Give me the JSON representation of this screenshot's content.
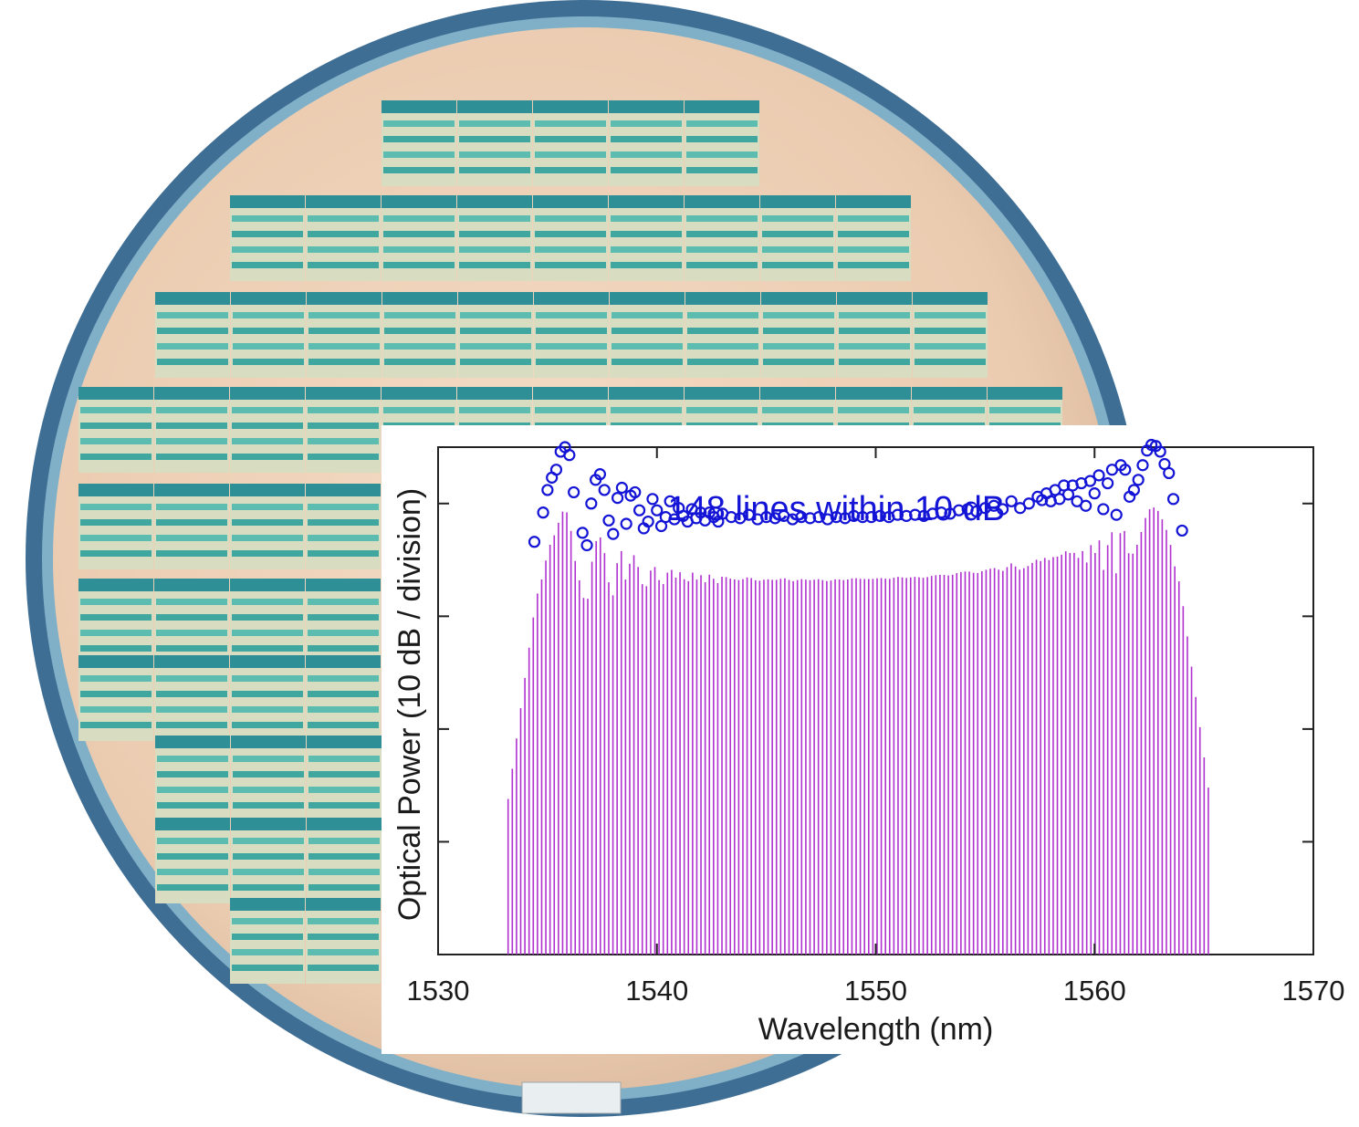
{
  "chart_data": {
    "type": "line",
    "title": "",
    "annotation": "148 lines within 10 dB",
    "xlabel": "Wavelength (nm)",
    "ylabel": "Optical Power (10 dB / division)",
    "xlim": [
      1530,
      1570
    ],
    "x_ticks": [
      "1530",
      "1540",
      "1550",
      "1560",
      "1570"
    ],
    "x_tick_values": [
      1530,
      1540,
      1550,
      1560,
      1570
    ],
    "ylim": [
      -40,
      5
    ],
    "y_tick_values": [
      -30,
      -20,
      -10,
      0
    ],
    "y_ticks_labeled": false,
    "grid": false,
    "series": [
      {
        "type": "comb-lines",
        "color": "#b030d0",
        "count": 168,
        "start_nm": 1533.2,
        "end_nm": 1565.2
      },
      {
        "type": "scatter",
        "marker": "open-circle",
        "color": "#1414d6",
        "count": 148,
        "start_nm": 1534.4,
        "end_nm": 1564.0,
        "peak_values_dB": [
          [
            1534.4,
            -3.4
          ],
          [
            1534.8,
            -0.8
          ],
          [
            1535.0,
            1.2
          ],
          [
            1535.2,
            2.3
          ],
          [
            1535.4,
            3.0
          ],
          [
            1535.6,
            4.6
          ],
          [
            1535.8,
            5.0
          ],
          [
            1536.0,
            4.3
          ],
          [
            1536.2,
            1.0
          ],
          [
            1536.6,
            -2.6
          ],
          [
            1536.8,
            -3.7
          ],
          [
            1537.0,
            0.0
          ],
          [
            1537.2,
            2.1
          ],
          [
            1537.4,
            2.6
          ],
          [
            1537.6,
            1.2
          ],
          [
            1537.8,
            -1.5
          ],
          [
            1538.0,
            -2.7
          ],
          [
            1538.2,
            0.5
          ],
          [
            1538.4,
            1.4
          ],
          [
            1538.6,
            -1.8
          ],
          [
            1538.8,
            0.7
          ],
          [
            1539.0,
            1.0
          ],
          [
            1539.2,
            -0.6
          ],
          [
            1539.4,
            -2.2
          ],
          [
            1539.6,
            -1.6
          ],
          [
            1539.8,
            0.4
          ],
          [
            1540.0,
            -0.6
          ],
          [
            1540.2,
            -2.0
          ],
          [
            1540.4,
            -1.2
          ],
          [
            1540.6,
            0.2
          ],
          [
            1540.8,
            -1.4
          ],
          [
            1541.0,
            -0.4
          ],
          [
            1541.2,
            -1.1
          ],
          [
            1541.4,
            -1.6
          ],
          [
            1541.6,
            -0.5
          ],
          [
            1541.8,
            -1.3
          ],
          [
            1542.0,
            -0.8
          ],
          [
            1542.2,
            -1.5
          ],
          [
            1542.4,
            -0.8
          ],
          [
            1542.6,
            -1.2
          ],
          [
            1542.8,
            -1.6
          ],
          [
            1543.0,
            -0.9
          ],
          [
            1543.4,
            -1.2
          ],
          [
            1543.8,
            -1.3
          ],
          [
            1544.2,
            -1.0
          ],
          [
            1544.6,
            -1.4
          ],
          [
            1545.0,
            -1.2
          ],
          [
            1545.4,
            -1.3
          ],
          [
            1545.8,
            -1.1
          ],
          [
            1546.2,
            -1.4
          ],
          [
            1546.6,
            -1.2
          ],
          [
            1547.0,
            -1.3
          ],
          [
            1547.4,
            -1.2
          ],
          [
            1547.8,
            -1.4
          ],
          [
            1548.2,
            -1.2
          ],
          [
            1548.6,
            -1.3
          ],
          [
            1549.0,
            -1.1
          ],
          [
            1549.4,
            -1.2
          ],
          [
            1549.8,
            -1.2
          ],
          [
            1550.2,
            -1.1
          ],
          [
            1550.6,
            -1.2
          ],
          [
            1551.0,
            -1.0
          ],
          [
            1551.4,
            -1.1
          ],
          [
            1551.8,
            -1.0
          ],
          [
            1552.2,
            -1.1
          ],
          [
            1552.6,
            -0.9
          ],
          [
            1553.0,
            -0.8
          ],
          [
            1553.4,
            -0.9
          ],
          [
            1553.8,
            -0.6
          ],
          [
            1554.2,
            -0.5
          ],
          [
            1554.6,
            -0.7
          ],
          [
            1555.0,
            -0.4
          ],
          [
            1555.4,
            -0.2
          ],
          [
            1555.8,
            -0.5
          ],
          [
            1556.2,
            0.2
          ],
          [
            1556.6,
            -0.4
          ],
          [
            1557.0,
            0.0
          ],
          [
            1557.4,
            0.6
          ],
          [
            1557.6,
            0.3
          ],
          [
            1557.8,
            0.9
          ],
          [
            1558.0,
            0.2
          ],
          [
            1558.2,
            1.2
          ],
          [
            1558.4,
            0.4
          ],
          [
            1558.6,
            1.6
          ],
          [
            1558.8,
            0.8
          ],
          [
            1559.0,
            1.6
          ],
          [
            1559.2,
            0.2
          ],
          [
            1559.4,
            1.8
          ],
          [
            1559.6,
            -0.2
          ],
          [
            1559.8,
            2.0
          ],
          [
            1560.0,
            0.9
          ],
          [
            1560.2,
            2.5
          ],
          [
            1560.4,
            -0.5
          ],
          [
            1560.6,
            1.8
          ],
          [
            1560.8,
            3.0
          ],
          [
            1561.0,
            -1.0
          ],
          [
            1561.2,
            3.4
          ],
          [
            1561.4,
            3.0
          ],
          [
            1561.6,
            0.6
          ],
          [
            1561.8,
            1.2
          ],
          [
            1562.0,
            2.1
          ],
          [
            1562.2,
            3.4
          ],
          [
            1562.4,
            4.7
          ],
          [
            1562.6,
            5.2
          ],
          [
            1562.8,
            5.1
          ],
          [
            1563.0,
            4.6
          ],
          [
            1563.2,
            3.5
          ],
          [
            1563.4,
            2.7
          ],
          [
            1563.6,
            0.4
          ],
          [
            1564.0,
            -2.4
          ]
        ]
      }
    ]
  }
}
